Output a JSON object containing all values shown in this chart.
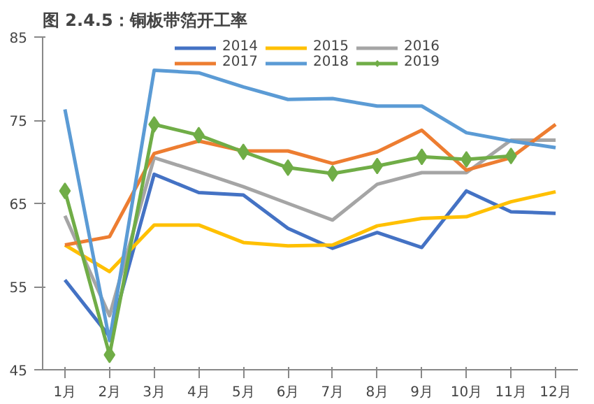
{
  "chart_data": {
    "type": "line",
    "title": "图 2.4.5：铜板带箔开工率",
    "categories": [
      "1月",
      "2月",
      "3月",
      "4月",
      "5月",
      "6月",
      "7月",
      "8月",
      "9月",
      "10月",
      "11月",
      "12月"
    ],
    "series": [
      {
        "name": "2014",
        "color": "#4472c4",
        "values": [
          55.8,
          49,
          68.5,
          66.3,
          66,
          62,
          59.6,
          61.5,
          59.7,
          66.5,
          64,
          63.8
        ]
      },
      {
        "name": "2015",
        "color": "#ffc000",
        "values": [
          60,
          56.8,
          62.4,
          62.4,
          60.3,
          59.9,
          60,
          62.3,
          63.2,
          63.4,
          65.2,
          66.4
        ]
      },
      {
        "name": "2016",
        "color": "#a5a5a5",
        "values": [
          63.5,
          51.5,
          70.5,
          68.8,
          67,
          65,
          63,
          67.3,
          68.7,
          68.7,
          72.6,
          72.6
        ]
      },
      {
        "name": "2017",
        "color": "#ed7d31",
        "values": [
          60,
          61,
          71,
          72.5,
          71.3,
          71.3,
          69.8,
          71.2,
          73.8,
          69,
          70.5,
          74.5
        ]
      },
      {
        "name": "2018",
        "color": "#5b9bd5",
        "values": [
          76.3,
          48.5,
          81,
          80.7,
          79,
          77.5,
          77.6,
          76.7,
          76.7,
          73.5,
          72.5,
          71.7
        ]
      },
      {
        "name": "2019",
        "color": "#70ad47",
        "marker": "diamond",
        "values": [
          66.5,
          46.8,
          74.5,
          73.2,
          71.2,
          69.3,
          68.6,
          69.5,
          70.6,
          70.3,
          70.7,
          null
        ]
      }
    ],
    "ylim": [
      45,
      85
    ],
    "yticks": [
      45,
      55,
      65,
      75,
      85
    ],
    "grid": false,
    "legend": "top"
  }
}
